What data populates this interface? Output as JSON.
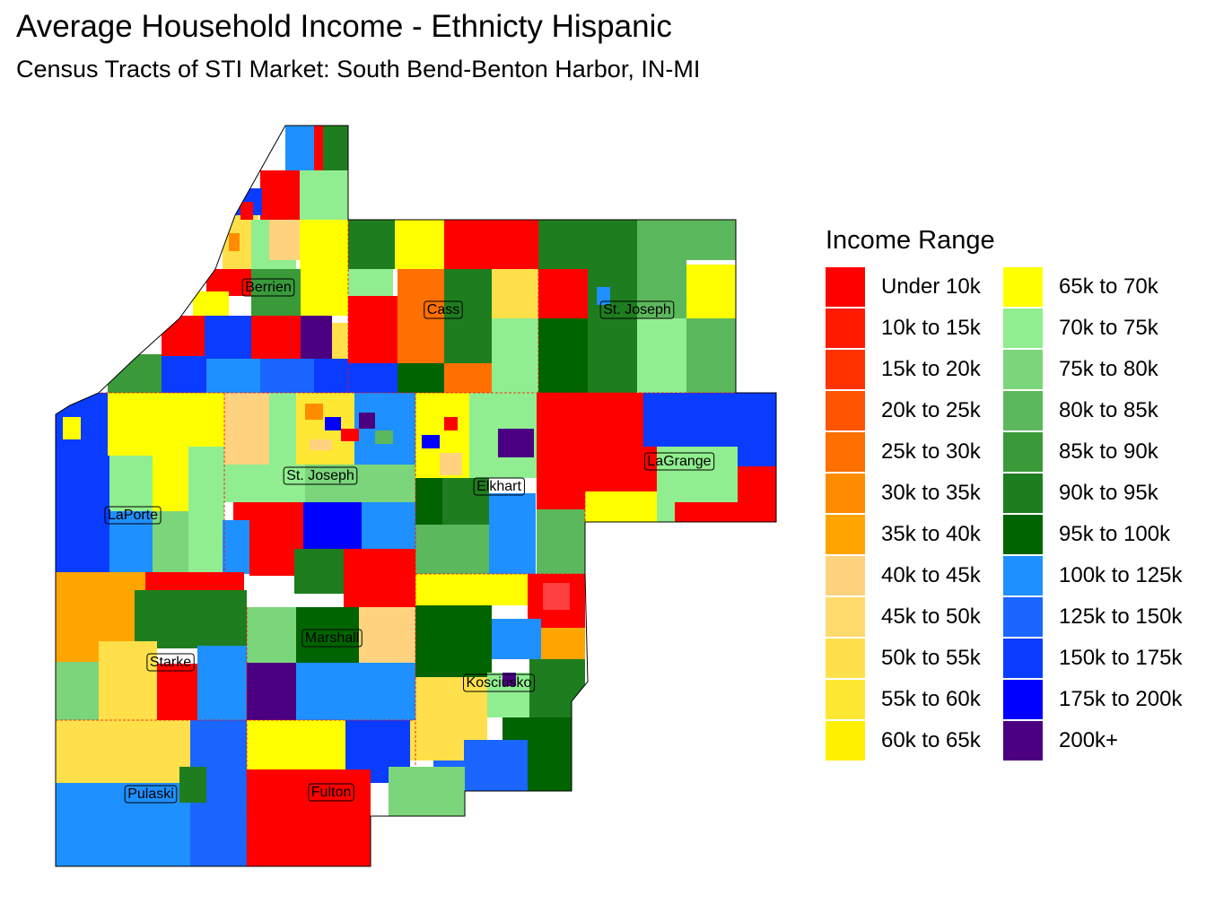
{
  "title": "Average Household Income - Ethnicty Hispanic",
  "subtitle": "Census Tracts of STI Market: South Bend-Benton Harbor, IN-MI",
  "legend": {
    "title": "Income Range",
    "items": [
      {
        "label": "Under 10k",
        "color": "#ff0000"
      },
      {
        "label": "10k to 15k",
        "color": "#ff1a00"
      },
      {
        "label": "15k to 20k",
        "color": "#ff3300"
      },
      {
        "label": "20k to 25k",
        "color": "#ff5500"
      },
      {
        "label": "25k to 30k",
        "color": "#ff7000"
      },
      {
        "label": "30k to 35k",
        "color": "#ff8c00"
      },
      {
        "label": "35k to 40k",
        "color": "#ffa500"
      },
      {
        "label": "40k to 45k",
        "color": "#ffd27f"
      },
      {
        "label": "45k to 50k",
        "color": "#ffdb6e"
      },
      {
        "label": "50k to 55k",
        "color": "#ffe04a"
      },
      {
        "label": "55k to 60k",
        "color": "#ffe833"
      },
      {
        "label": "60k to 65k",
        "color": "#fff000"
      },
      {
        "label": "65k to 70k",
        "color": "#ffff00"
      },
      {
        "label": "70k to 75k",
        "color": "#90ee90"
      },
      {
        "label": "75k to 80k",
        "color": "#7bd67b"
      },
      {
        "label": "80k to 85k",
        "color": "#5cb85c"
      },
      {
        "label": "85k to 90k",
        "color": "#3a9a3a"
      },
      {
        "label": "90k to 95k",
        "color": "#1e7d1e"
      },
      {
        "label": "95k to 100k",
        "color": "#006400"
      },
      {
        "label": "100k to 125k",
        "color": "#1e90ff"
      },
      {
        "label": "125k to 150k",
        "color": "#1a66ff"
      },
      {
        "label": "150k to 175k",
        "color": "#0a3cff"
      },
      {
        "label": "175k to 200k",
        "color": "#0000ff"
      },
      {
        "label": "200k+",
        "color": "#4b0082"
      }
    ]
  },
  "counties": [
    "Berrien",
    "Cass",
    "St. Joseph",
    "LaGrange",
    "St. Joseph",
    "Elkhart",
    "LaPorte",
    "Marshall",
    "Starke",
    "Kosciusko",
    "Pulaski",
    "Fulton"
  ]
}
